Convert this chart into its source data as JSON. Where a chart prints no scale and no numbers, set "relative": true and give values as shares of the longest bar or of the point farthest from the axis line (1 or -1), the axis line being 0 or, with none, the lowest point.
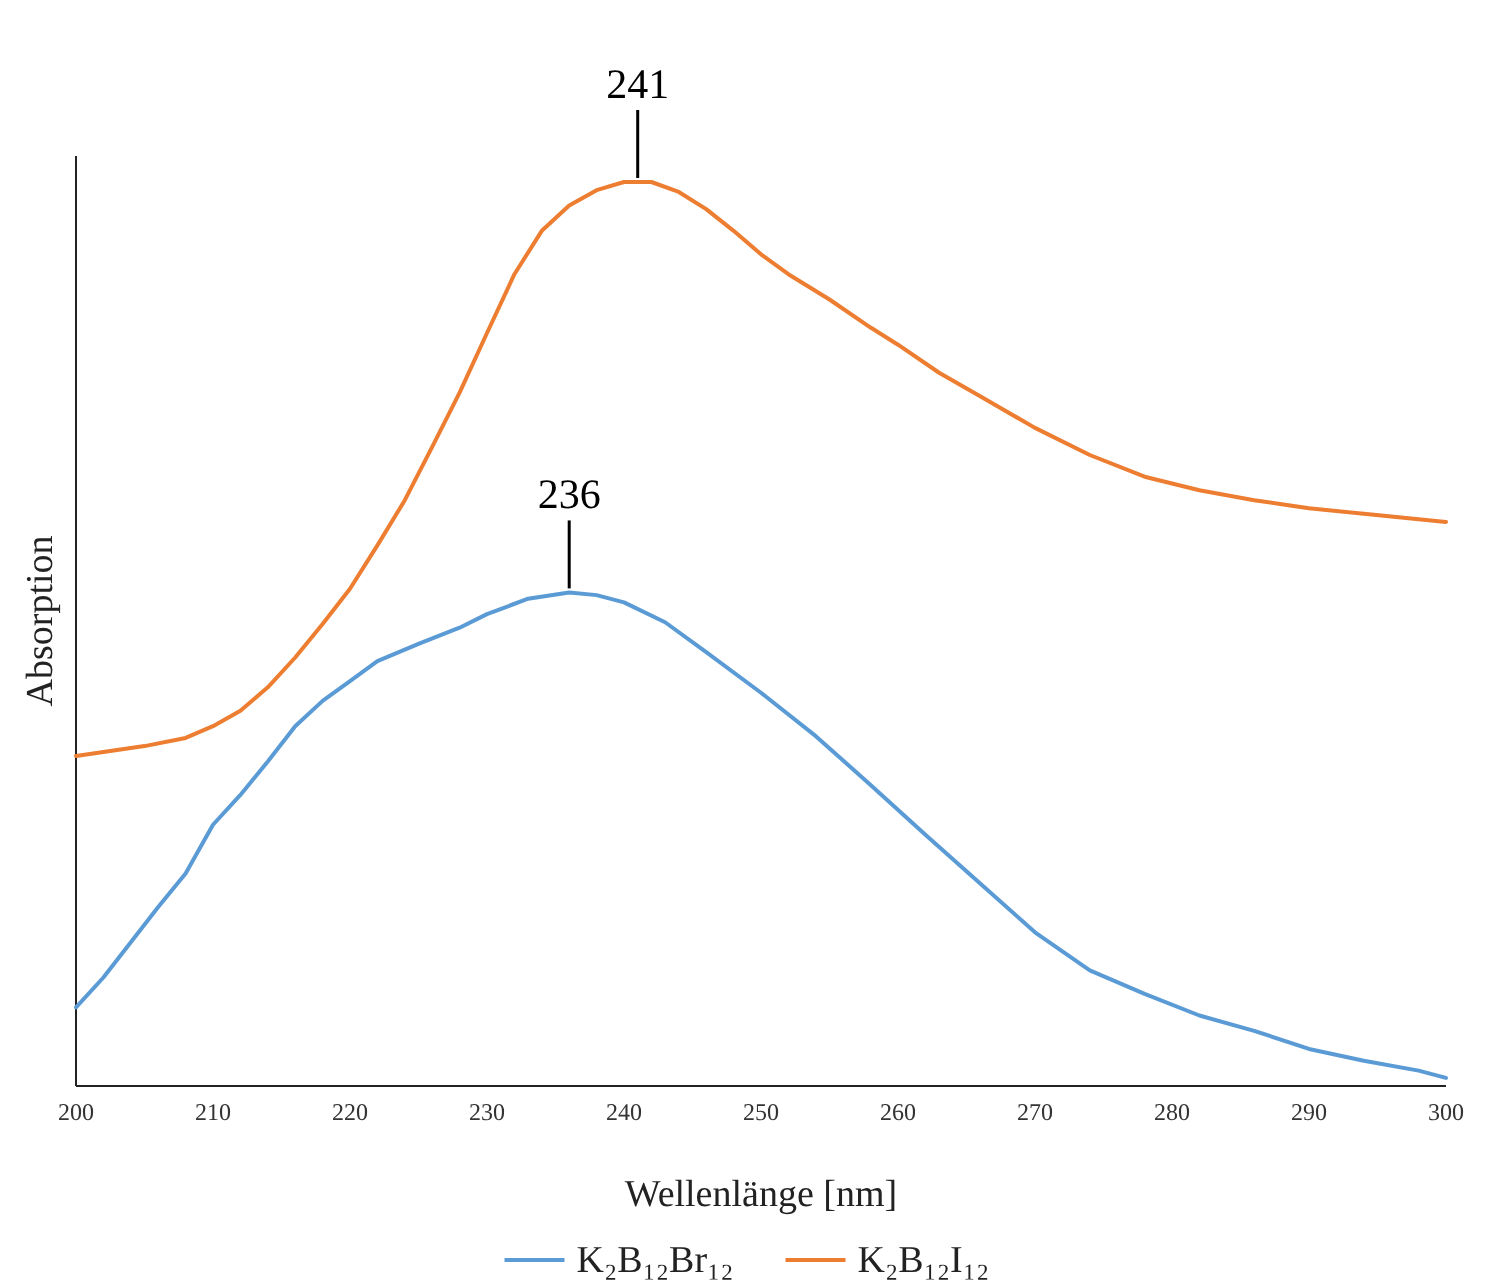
{
  "chart_data": {
    "type": "line",
    "relative": true,
    "xlabel": "Wellenlänge [nm]",
    "ylabel": "Absorption",
    "xlim": [
      200,
      300
    ],
    "xticks": [
      200,
      210,
      220,
      230,
      240,
      250,
      260,
      270,
      280,
      290,
      300
    ],
    "grid": false,
    "legend": "bottom",
    "marker": "none",
    "line_style": "solid",
    "annotations": [
      {
        "text": "241",
        "x": 241,
        "y": 1
      },
      {
        "text": "236",
        "x": 236,
        "y": 0.546
      }
    ],
    "series": [
      {
        "name": "K₂B₁₂Br₁₂",
        "color": "#5b9bd5",
        "x": [
          200,
          202,
          204,
          206,
          208,
          210,
          212,
          214,
          216,
          218,
          220,
          222,
          225,
          228,
          230,
          233,
          236,
          238,
          240,
          243,
          246,
          250,
          254,
          258,
          262,
          266,
          270,
          274,
          278,
          282,
          286,
          290,
          294,
          298,
          300
        ],
        "values": [
          0.087,
          0.12,
          0.159,
          0.198,
          0.235,
          0.289,
          0.322,
          0.359,
          0.398,
          0.426,
          0.448,
          0.47,
          0.489,
          0.507,
          0.522,
          0.539,
          0.546,
          0.543,
          0.535,
          0.513,
          0.48,
          0.435,
          0.387,
          0.333,
          0.278,
          0.224,
          0.17,
          0.128,
          0.102,
          0.078,
          0.061,
          0.041,
          0.028,
          0.017,
          0.009
        ]
      },
      {
        "name": "K₂B₁₂I₁₂",
        "color": "#ed7d31",
        "x": [
          200,
          205,
          208,
          210,
          212,
          214,
          216,
          218,
          220,
          222,
          224,
          226,
          228,
          230,
          232,
          234,
          236,
          238,
          240,
          242,
          244,
          246,
          248,
          250,
          252,
          255,
          258,
          260,
          263,
          266,
          270,
          274,
          278,
          282,
          286,
          290,
          294,
          300
        ],
        "values": [
          0.365,
          0.376,
          0.385,
          0.398,
          0.415,
          0.441,
          0.474,
          0.511,
          0.55,
          0.598,
          0.648,
          0.707,
          0.767,
          0.833,
          0.898,
          0.946,
          0.974,
          0.991,
          1,
          1,
          0.989,
          0.97,
          0.946,
          0.92,
          0.898,
          0.87,
          0.839,
          0.82,
          0.789,
          0.763,
          0.728,
          0.698,
          0.674,
          0.659,
          0.648,
          0.639,
          0.633,
          0.624
        ]
      }
    ]
  }
}
